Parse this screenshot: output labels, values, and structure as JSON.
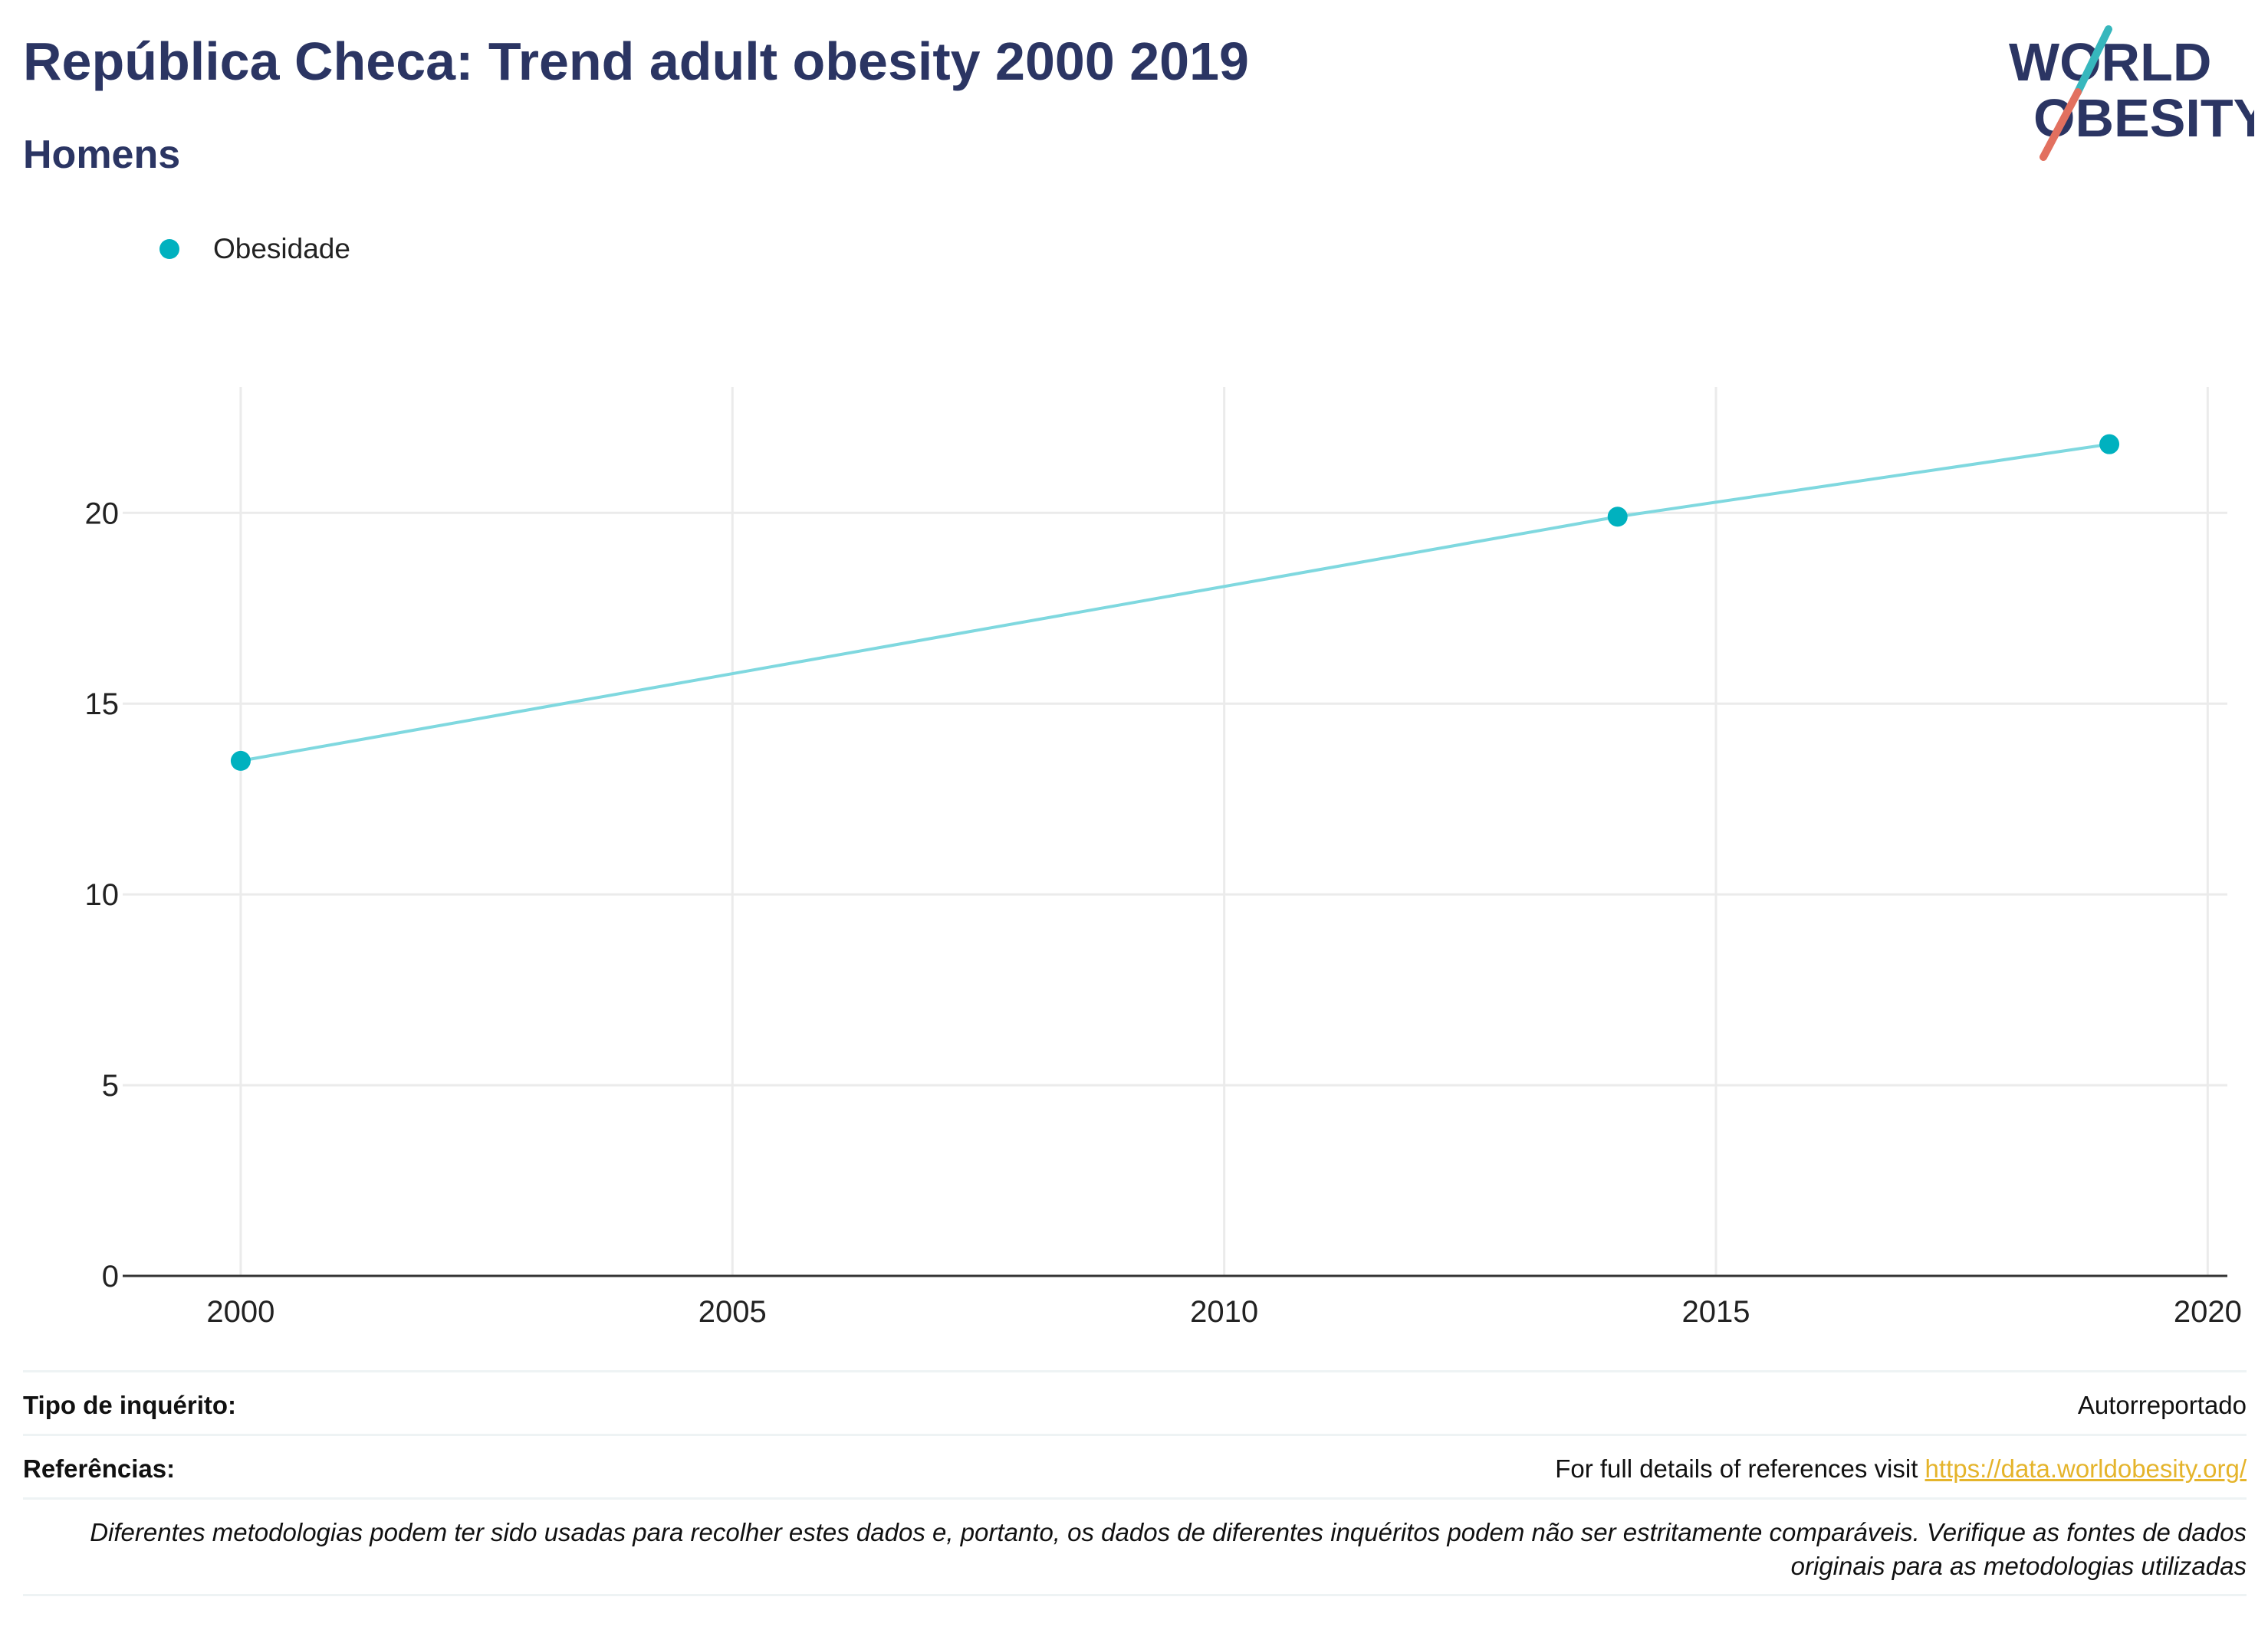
{
  "header": {
    "title": "República Checa: Trend adult obesity 2000 2019",
    "subtitle": "Homens"
  },
  "logo": {
    "line1": "WORLD",
    "line2": "OBESITY"
  },
  "colors": {
    "series": "#00b1bf",
    "line": "#7fd8df",
    "title": "#2b3563",
    "link": "#e5b42b",
    "logo_slash_top": "#37b7bd",
    "logo_slash_bottom": "#e2705f"
  },
  "chart_data": {
    "type": "line",
    "series": [
      {
        "name": "Obesidade",
        "x": [
          2000,
          2014,
          2019
        ],
        "y": [
          13.5,
          19.9,
          21.8
        ]
      }
    ],
    "xlim": [
      1998.8,
      2020.2
    ],
    "ylim": [
      0,
      23.3
    ],
    "xticks": [
      2000,
      2005,
      2010,
      2015,
      2020
    ],
    "yticks": [
      0,
      5,
      10,
      15,
      20
    ],
    "grid": true,
    "legend": "top-left",
    "title": "",
    "xlabel": "",
    "ylabel": ""
  },
  "footer": {
    "survey_label": "Tipo de inquérito:",
    "survey_value": "Autorreportado",
    "refs_label": "Referências:",
    "refs_text": "For full details of references visit ",
    "refs_link": "https://data.worldobesity.org/",
    "note": "Diferentes metodologias podem ter sido usadas para recolher estes dados e, portanto, os dados de diferentes inquéritos podem não ser estritamente comparáveis. Verifique as fontes de dados originais para as metodologias utilizadas"
  }
}
